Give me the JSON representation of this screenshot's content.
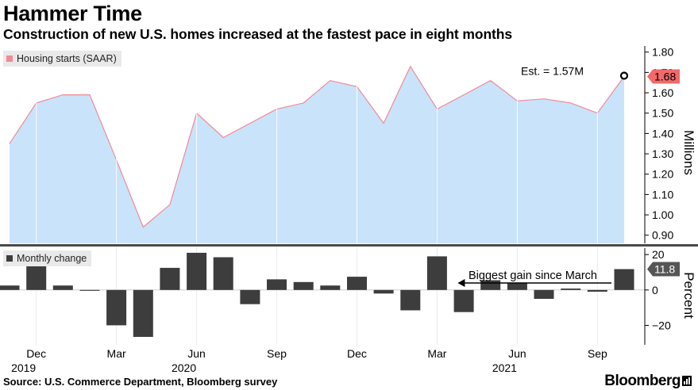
{
  "title": "Hammer Time",
  "subtitle": "Construction of new U.S. homes increased at the fastest pace in eight months",
  "source": "Source: U.S. Commerce Department, Bloomberg survey",
  "brand": "Bloomberg",
  "colors": {
    "area_fill": "#c9e3fb",
    "area_line": "#f08a93",
    "bar": "#3d3d3d",
    "latest_badge": "#f16a6a"
  },
  "chart_data": [
    {
      "type": "area",
      "legend": "Housing starts (SAAR)",
      "legend_placement": "top-left",
      "axis_label": "Millions",
      "x": [
        "2019-11",
        "2019-12",
        "2020-01",
        "2020-02",
        "2020-03",
        "2020-04",
        "2020-05",
        "2020-06",
        "2020-07",
        "2020-08",
        "2020-09",
        "2020-10",
        "2020-11",
        "2020-12",
        "2021-01",
        "2021-02",
        "2021-03",
        "2021-04",
        "2021-05",
        "2021-06",
        "2021-07",
        "2021-08",
        "2021-09",
        "2021-10"
      ],
      "values": [
        1.35,
        1.55,
        1.59,
        1.59,
        1.27,
        0.94,
        1.05,
        1.5,
        1.38,
        1.45,
        1.52,
        1.55,
        1.66,
        1.63,
        1.45,
        1.73,
        1.52,
        1.59,
        1.66,
        1.56,
        1.57,
        1.55,
        1.5,
        1.68
      ],
      "ylim": [
        0.86,
        1.83
      ],
      "yticks": [
        "1.80",
        "1.70",
        "1.60",
        "1.50",
        "1.40",
        "1.30",
        "1.20",
        "1.10",
        "1.00",
        "0.90"
      ],
      "latest_label": "1.68",
      "estimate": {
        "label": "Est. = 1.57M",
        "value": 1.68
      }
    },
    {
      "type": "bar",
      "legend": "Monthly change",
      "legend_placement": "top-left",
      "axis_label": "Percent",
      "x": [
        "2019-11",
        "2019-12",
        "2020-01",
        "2020-02",
        "2020-03",
        "2020-04",
        "2020-05",
        "2020-06",
        "2020-07",
        "2020-08",
        "2020-09",
        "2020-10",
        "2020-11",
        "2020-12",
        "2021-01",
        "2021-02",
        "2021-03",
        "2021-04",
        "2021-05",
        "2021-06",
        "2021-07",
        "2021-08",
        "2021-09",
        "2021-10"
      ],
      "values": [
        2.5,
        15.5,
        2.5,
        -0.5,
        -20.0,
        -26.5,
        12.5,
        21.0,
        18.5,
        -8.0,
        6.0,
        4.5,
        2.5,
        7.5,
        -2.0,
        -11.5,
        19.0,
        -12.5,
        5.5,
        3.8,
        -5.0,
        0.8,
        -1.0,
        11.8
      ],
      "ylim": [
        -31,
        25
      ],
      "yticks": [
        "20",
        "0",
        "-20"
      ],
      "latest_label": "11.8",
      "annotation": "Biggest gain since March"
    }
  ],
  "x_axis": {
    "ticks": [
      {
        "month": "2019-12",
        "label": "Dec",
        "year": "2019"
      },
      {
        "month": "2020-03",
        "label": "Mar",
        "year": ""
      },
      {
        "month": "2020-06",
        "label": "Jun",
        "year": "2020"
      },
      {
        "month": "2020-09",
        "label": "Sep",
        "year": ""
      },
      {
        "month": "2020-12",
        "label": "Dec",
        "year": ""
      },
      {
        "month": "2021-03",
        "label": "Mar",
        "year": ""
      },
      {
        "month": "2021-06",
        "label": "Jun",
        "year": "2021"
      },
      {
        "month": "2021-09",
        "label": "Sep",
        "year": ""
      }
    ]
  }
}
